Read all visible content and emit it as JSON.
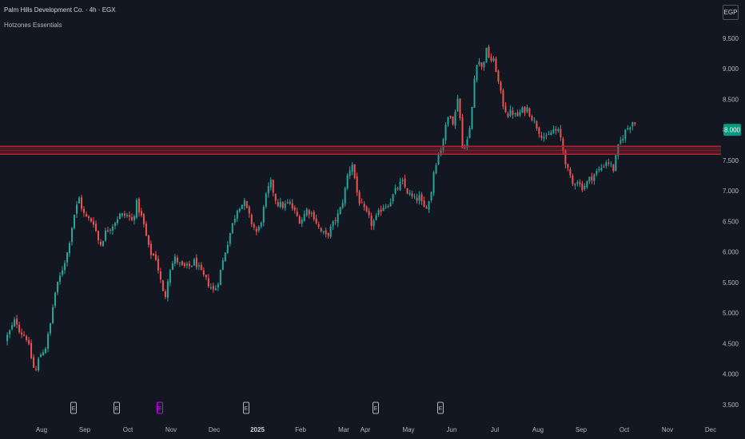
{
  "header": {
    "title": "Palm Hills Development Co. · 4h · EGX",
    "indicator": "Hotzones Essentials",
    "currency": "EGP"
  },
  "price_badge": {
    "label": "8.000",
    "color": "#089981"
  },
  "colors": {
    "up": "#26a69a",
    "down": "#ef5350",
    "zone": "#b2222f",
    "background": "#131722",
    "event_marker": "#b2b5be",
    "future_event_marker": "#d500f9"
  },
  "events": [
    {
      "date": "Sep",
      "icon": "earnings-icon",
      "future": false
    },
    {
      "date": "Dec",
      "icon": "earnings-icon",
      "future": false
    },
    {
      "date": "Mar",
      "icon": "earnings-icon",
      "future": false
    },
    {
      "date": "May",
      "icon": "earnings-icon",
      "future": false
    },
    {
      "date": "Aug",
      "icon": "earnings-icon",
      "future": false
    },
    {
      "date": "Oct",
      "icon": "earnings-icon",
      "future": true
    }
  ],
  "chart_data": {
    "type": "candlestick",
    "x_axis": {
      "ticks": [
        {
          "label": "Aug",
          "t": 0.0
        },
        {
          "label": "Sep",
          "t": 1.0
        },
        {
          "label": "Oct",
          "t": 2.0
        },
        {
          "label": "Nov",
          "t": 3.0
        },
        {
          "label": "Dec",
          "t": 4.0
        },
        {
          "label": "2025",
          "t": 5.0,
          "bold": true
        },
        {
          "label": "Feb",
          "t": 6.0
        },
        {
          "label": "Mar",
          "t": 7.0
        },
        {
          "label": "Apr",
          "t": 7.5
        },
        {
          "label": "May",
          "t": 8.5
        },
        {
          "label": "Jun",
          "t": 9.5
        },
        {
          "label": "Jul",
          "t": 10.5
        },
        {
          "label": "Aug",
          "t": 11.5
        },
        {
          "label": "Sep",
          "t": 12.5
        },
        {
          "label": "Oct",
          "t": 13.5
        },
        {
          "label": "Nov",
          "t": 14.5
        },
        {
          "label": "Dec",
          "t": 15.5
        }
      ]
    },
    "y_axis": {
      "ylim": [
        3.5,
        9.7
      ],
      "ticks": [
        "3.500",
        "4.000",
        "4.500",
        "5.000",
        "5.500",
        "6.000",
        "6.500",
        "7.000",
        "7.500",
        "8.000",
        "8.500",
        "9.000",
        "9.500"
      ]
    },
    "last_price": 8.0,
    "zone": {
      "low": 7.6,
      "high": 7.73
    },
    "path": [
      [
        -0.85,
        4.55
      ],
      [
        -0.7,
        4.75
      ],
      [
        -0.6,
        4.9
      ],
      [
        -0.5,
        4.7
      ],
      [
        -0.35,
        4.6
      ],
      [
        -0.25,
        4.3
      ],
      [
        -0.15,
        4.0
      ],
      [
        -0.05,
        4.3
      ],
      [
        0.1,
        4.45
      ],
      [
        0.2,
        4.8
      ],
      [
        0.3,
        5.3
      ],
      [
        0.45,
        5.65
      ],
      [
        0.6,
        6.0
      ],
      [
        0.75,
        6.6
      ],
      [
        0.88,
        6.9
      ],
      [
        0.95,
        6.65
      ],
      [
        1.05,
        6.55
      ],
      [
        1.2,
        6.5
      ],
      [
        1.35,
        6.1
      ],
      [
        1.5,
        6.35
      ],
      [
        1.65,
        6.45
      ],
      [
        1.8,
        6.6
      ],
      [
        2.0,
        6.6
      ],
      [
        2.1,
        6.5
      ],
      [
        2.2,
        6.8
      ],
      [
        2.35,
        6.5
      ],
      [
        2.5,
        6.0
      ],
      [
        2.65,
        5.9
      ],
      [
        2.75,
        5.55
      ],
      [
        2.85,
        5.2
      ],
      [
        2.95,
        5.7
      ],
      [
        3.1,
        5.9
      ],
      [
        3.25,
        5.75
      ],
      [
        3.4,
        5.75
      ],
      [
        3.55,
        5.85
      ],
      [
        3.7,
        5.65
      ],
      [
        3.85,
        5.5
      ],
      [
        4.0,
        5.35
      ],
      [
        4.1,
        5.55
      ],
      [
        4.25,
        6.0
      ],
      [
        4.4,
        6.4
      ],
      [
        4.55,
        6.75
      ],
      [
        4.7,
        6.8
      ],
      [
        4.85,
        6.5
      ],
      [
        5.0,
        6.3
      ],
      [
        5.1,
        6.55
      ],
      [
        5.2,
        6.9
      ],
      [
        5.3,
        7.15
      ],
      [
        5.45,
        6.8
      ],
      [
        5.6,
        6.75
      ],
      [
        5.75,
        6.8
      ],
      [
        5.9,
        6.6
      ],
      [
        6.0,
        6.5
      ],
      [
        6.15,
        6.7
      ],
      [
        6.3,
        6.6
      ],
      [
        6.45,
        6.35
      ],
      [
        6.6,
        6.25
      ],
      [
        6.75,
        6.45
      ],
      [
        6.9,
        6.65
      ],
      [
        7.0,
        6.9
      ],
      [
        7.1,
        7.3
      ],
      [
        7.2,
        7.45
      ],
      [
        7.3,
        7.0
      ],
      [
        7.35,
        6.85
      ],
      [
        7.45,
        6.7
      ],
      [
        7.55,
        6.6
      ],
      [
        7.65,
        6.45
      ],
      [
        7.75,
        6.55
      ],
      [
        7.9,
        6.75
      ],
      [
        8.05,
        6.8
      ],
      [
        8.2,
        7.0
      ],
      [
        8.35,
        7.15
      ],
      [
        8.5,
        6.95
      ],
      [
        8.65,
        6.85
      ],
      [
        8.75,
        6.9
      ],
      [
        8.85,
        6.7
      ],
      [
        9.0,
        6.85
      ],
      [
        9.1,
        7.4
      ],
      [
        9.25,
        7.7
      ],
      [
        9.35,
        8.0
      ],
      [
        9.45,
        8.3
      ],
      [
        9.55,
        8.1
      ],
      [
        9.65,
        8.6
      ],
      [
        9.75,
        7.7
      ],
      [
        9.85,
        7.8
      ],
      [
        9.95,
        8.1
      ],
      [
        10.0,
        8.7
      ],
      [
        10.1,
        9.2
      ],
      [
        10.2,
        9.0
      ],
      [
        10.3,
        9.3
      ],
      [
        10.4,
        9.15
      ],
      [
        10.5,
        9.1
      ],
      [
        10.6,
        8.7
      ],
      [
        10.7,
        8.4
      ],
      [
        10.8,
        8.25
      ],
      [
        10.9,
        8.3
      ],
      [
        11.0,
        8.2
      ],
      [
        11.1,
        8.3
      ],
      [
        11.25,
        8.35
      ],
      [
        11.4,
        8.15
      ],
      [
        11.55,
        7.95
      ],
      [
        11.7,
        7.85
      ],
      [
        11.85,
        8.0
      ],
      [
        12.0,
        7.95
      ],
      [
        12.1,
        7.6
      ],
      [
        12.2,
        7.3
      ],
      [
        12.3,
        7.1
      ],
      [
        12.4,
        7.2
      ],
      [
        12.5,
        7.05
      ],
      [
        12.6,
        7.1
      ],
      [
        12.7,
        7.2
      ],
      [
        12.85,
        7.3
      ],
      [
        13.0,
        7.4
      ],
      [
        13.1,
        7.5
      ],
      [
        13.25,
        7.35
      ],
      [
        13.35,
        7.7
      ],
      [
        13.5,
        7.95
      ],
      [
        13.6,
        8.05
      ],
      [
        13.7,
        8.15
      ],
      [
        13.8,
        8.05
      ]
    ]
  }
}
